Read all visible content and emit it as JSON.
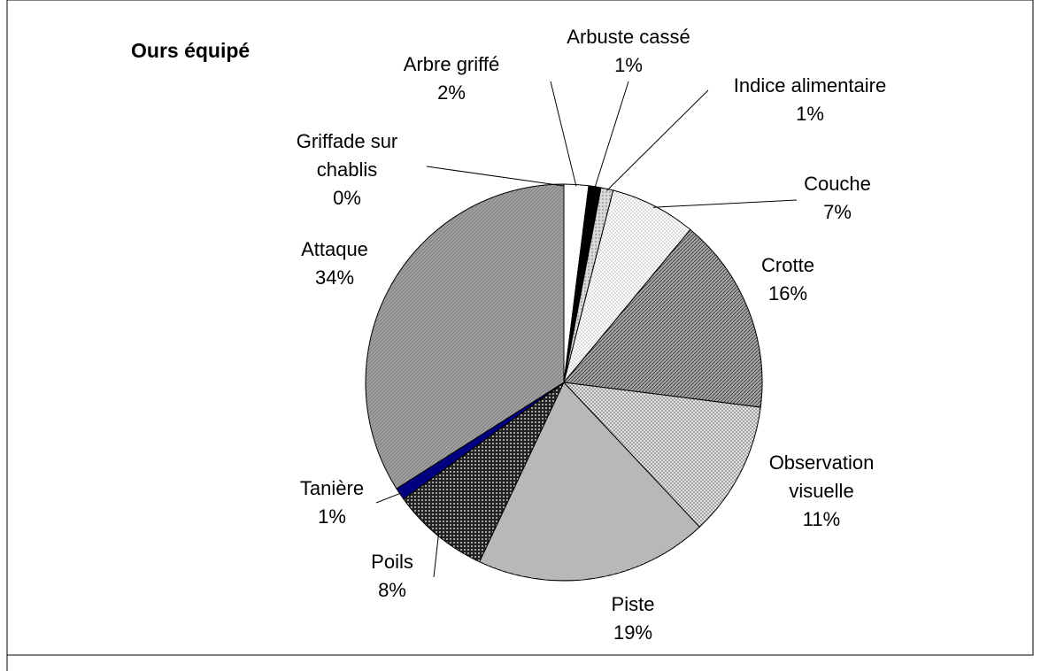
{
  "chart_data": {
    "type": "pie",
    "title": "Ours équipé",
    "categories": [
      "Griffade sur chablis",
      "Arbre griffé",
      "Arbuste cassé",
      "Indice alimentaire",
      "Couche",
      "Crotte",
      "Observation visuelle",
      "Piste",
      "Poils",
      "Tanière",
      "Attaque"
    ],
    "values": [
      0,
      2,
      1,
      1,
      7,
      16,
      11,
      19,
      8,
      1,
      34
    ],
    "value_labels": [
      "0%",
      "2%",
      "1%",
      "1%",
      "7%",
      "16%",
      "11%",
      "19%",
      "8%",
      "1%",
      "34%"
    ],
    "colors": [
      "#ffffff",
      "#ffffff",
      "#000000",
      "#d9d9d9",
      "#ffffff",
      "#a6a6a6",
      "#eeeeee",
      "#ffffff",
      "#222222",
      "#000080",
      "#a0a0a0"
    ]
  }
}
